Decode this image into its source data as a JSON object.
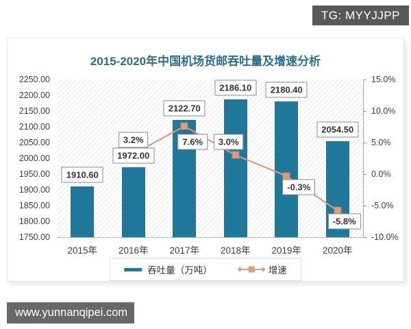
{
  "badge": {
    "text": "TG: MYYJJPP",
    "bg": "#58585a"
  },
  "watermark": {
    "text": "www.yunnanqipei.com",
    "bg": "#686868"
  },
  "colors": {
    "bar": "#1f7899",
    "line": "#d59a87",
    "marker": "#dd9d79",
    "marker_border": "#c08263",
    "title": "#2a6f8a"
  },
  "chart_data": {
    "type": "bar",
    "title": "2015-2020年中国机场货邮吞吐量及增速分析",
    "categories": [
      "2015年",
      "2016年",
      "2017年",
      "2018年",
      "2019年",
      "2020年"
    ],
    "series": [
      {
        "name": "吞吐量（万吨）",
        "type": "bar",
        "axis": "left",
        "values": [
          1910.6,
          1972.0,
          2122.7,
          2186.1,
          2180.4,
          2054.5
        ],
        "labels": [
          "1910.60",
          "1972.00",
          "2122.70",
          "2186.10",
          "2180.40",
          "2054.50"
        ]
      },
      {
        "name": "增速",
        "type": "line",
        "axis": "right",
        "values": [
          null,
          3.2,
          7.6,
          3.0,
          -0.3,
          -5.8
        ],
        "labels": [
          null,
          "3.2%",
          "7.6%",
          "3.0%",
          "-0.3%",
          "-5.8%"
        ]
      }
    ],
    "left_axis": {
      "min": 1750,
      "max": 2250,
      "step": 50,
      "tick_labels": [
        "2250.00",
        "2200.00",
        "2150.00",
        "2100.00",
        "2050.00",
        "2000.00",
        "1950.00",
        "1900.00",
        "1850.00",
        "1800.00",
        "1750.00"
      ]
    },
    "right_axis": {
      "min": -10,
      "max": 15,
      "step": 5,
      "tick_labels": [
        "15.0%",
        "10.0%",
        "5.0%",
        "0.0%",
        "-5.0%",
        "-10.0%"
      ]
    },
    "legend_position": "bottom",
    "grid": false
  }
}
